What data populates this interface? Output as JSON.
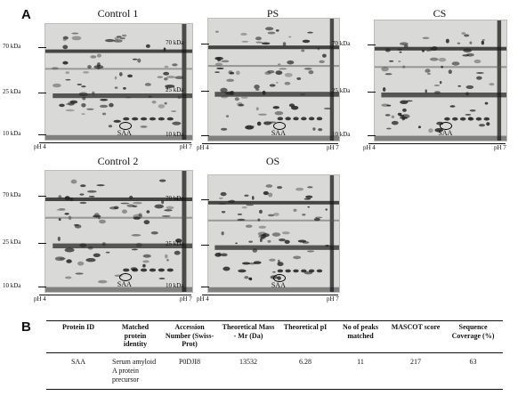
{
  "panel_a_letter": "A",
  "panel_b_letter": "B",
  "gels": [
    {
      "title": "Control 1",
      "kda": [
        "70 kDa",
        "25 kDa",
        "10 kDa"
      ],
      "ph_left": "pH 4",
      "ph_right": "pH 7",
      "spot_label": "SAA"
    },
    {
      "title": "PS",
      "kda": [
        "70 kDa",
        "25 kDa",
        "10 kDa"
      ],
      "ph_left": "pH 4",
      "ph_right": "pH 7",
      "spot_label": "SAA"
    },
    {
      "title": "CS",
      "kda": [
        "70 kDa",
        "25 kDa",
        "10 kDa"
      ],
      "ph_left": "pH 4",
      "ph_right": "pH 7",
      "spot_label": "SAA"
    },
    {
      "title": "Control 2",
      "kda": [
        "70 kDa",
        "25 kDa",
        "10 kDa"
      ],
      "ph_left": "pH 4",
      "ph_right": "pH 7",
      "spot_label": "SAA"
    },
    {
      "title": "OS",
      "kda": [
        "70 kDa",
        "25 kDa",
        "10 kDa"
      ],
      "ph_left": "pH 4",
      "ph_right": "pH 7",
      "spot_label": "SAA"
    }
  ],
  "table": {
    "headers": [
      "Protein ID",
      "Matched protein identity",
      "Accession Number (Swiss-Prot)",
      "Theoretical Mass - Mr (Da)",
      "Theoretical pI",
      "No of peaks matched",
      "MASCOT score",
      "Sequence Coverage (%)"
    ],
    "rows": [
      [
        "SAA",
        "Serum amyloid A protein precursor",
        "P0DJI8",
        "13532",
        "6.28",
        "11",
        "217",
        "63"
      ]
    ]
  }
}
